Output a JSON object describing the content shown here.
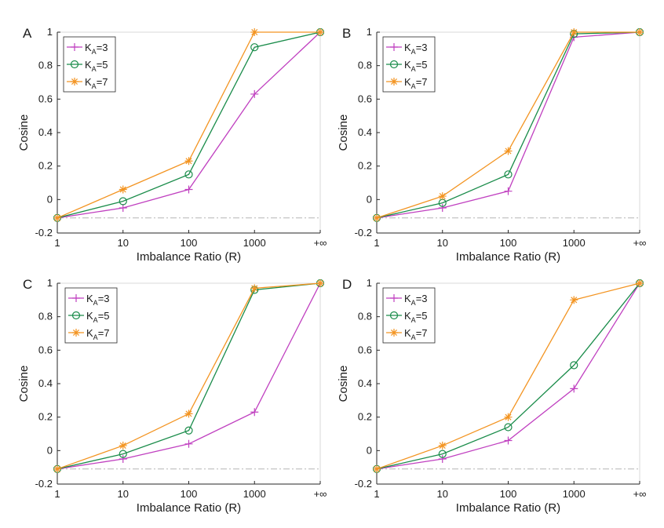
{
  "chart_data": [
    {
      "type": "line",
      "panel": "A",
      "categories": [
        "1",
        "10",
        "100",
        "1000",
        "+∞"
      ],
      "xlabel": "Imbalance Ratio (R)",
      "ylabel": "Cosine",
      "ylim": [
        -0.2,
        1
      ],
      "yticks": [
        "-0.2",
        "0",
        "0.2",
        "0.4",
        "0.6",
        "0.8",
        "1"
      ],
      "reference_line": -0.11,
      "legend_position": "top-left",
      "series": [
        {
          "name": "K_A=3",
          "label": "K",
          "sub": "A",
          "suffix": "=3",
          "color": "#c040c0",
          "marker": "plus",
          "values": [
            -0.11,
            -0.05,
            0.06,
            0.63,
            1.0
          ]
        },
        {
          "name": "K_A=5",
          "label": "K",
          "sub": "A",
          "suffix": "=5",
          "color": "#1a8c4a",
          "marker": "circle",
          "values": [
            -0.11,
            -0.01,
            0.15,
            0.91,
            1.0
          ]
        },
        {
          "name": "K_A=7",
          "label": "K",
          "sub": "A",
          "suffix": "=7",
          "color": "#f39421",
          "marker": "asterisk",
          "values": [
            -0.11,
            0.06,
            0.23,
            1.0,
            1.0
          ]
        }
      ]
    },
    {
      "type": "line",
      "panel": "B",
      "categories": [
        "1",
        "10",
        "100",
        "1000",
        "+∞"
      ],
      "xlabel": "Imbalance Ratio (R)",
      "ylabel": "Cosine",
      "ylim": [
        -0.2,
        1
      ],
      "yticks": [
        "-0.2",
        "0",
        "0.2",
        "0.4",
        "0.6",
        "0.8",
        "1"
      ],
      "reference_line": -0.11,
      "legend_position": "top-left",
      "series": [
        {
          "name": "K_A=3",
          "label": "K",
          "sub": "A",
          "suffix": "=3",
          "color": "#c040c0",
          "marker": "plus",
          "values": [
            -0.11,
            -0.05,
            0.05,
            0.97,
            1.0
          ]
        },
        {
          "name": "K_A=5",
          "label": "K",
          "sub": "A",
          "suffix": "=5",
          "color": "#1a8c4a",
          "marker": "circle",
          "values": [
            -0.11,
            -0.02,
            0.15,
            0.99,
            1.0
          ]
        },
        {
          "name": "K_A=7",
          "label": "K",
          "sub": "A",
          "suffix": "=7",
          "color": "#f39421",
          "marker": "asterisk",
          "values": [
            -0.11,
            0.02,
            0.29,
            1.0,
            1.0
          ]
        }
      ]
    },
    {
      "type": "line",
      "panel": "C",
      "categories": [
        "1",
        "10",
        "100",
        "1000",
        "+∞"
      ],
      "xlabel": "Imbalance Ratio (R)",
      "ylabel": "Cosine",
      "ylim": [
        -0.2,
        1
      ],
      "yticks": [
        "-0.2",
        "0",
        "0.2",
        "0.4",
        "0.6",
        "0.8",
        "1"
      ],
      "reference_line": -0.11,
      "legend_position": "top-right",
      "series": [
        {
          "name": "K_A=3",
          "label": "K",
          "sub": "A",
          "suffix": "=3",
          "color": "#c040c0",
          "marker": "plus",
          "values": [
            -0.11,
            -0.05,
            0.04,
            0.23,
            1.0
          ]
        },
        {
          "name": "K_A=5",
          "label": "K",
          "sub": "A",
          "suffix": "=5",
          "color": "#1a8c4a",
          "marker": "circle",
          "values": [
            -0.11,
            -0.02,
            0.12,
            0.96,
            1.0
          ]
        },
        {
          "name": "K_A=7",
          "label": "K",
          "sub": "A",
          "suffix": "=7",
          "color": "#f39421",
          "marker": "asterisk",
          "values": [
            -0.11,
            0.03,
            0.22,
            0.97,
            1.0
          ]
        }
      ]
    },
    {
      "type": "line",
      "panel": "D",
      "categories": [
        "1",
        "10",
        "100",
        "1000",
        "+∞"
      ],
      "xlabel": "Imbalance Ratio (R)",
      "ylabel": "Cosine",
      "ylim": [
        -0.2,
        1
      ],
      "yticks": [
        "-0.2",
        "0",
        "0.2",
        "0.4",
        "0.6",
        "0.8",
        "1"
      ],
      "reference_line": -0.11,
      "legend_position": "top-left",
      "series": [
        {
          "name": "K_A=3",
          "label": "K",
          "sub": "A",
          "suffix": "=3",
          "color": "#c040c0",
          "marker": "plus",
          "values": [
            -0.11,
            -0.05,
            0.06,
            0.37,
            1.0
          ]
        },
        {
          "name": "K_A=5",
          "label": "K",
          "sub": "A",
          "suffix": "=5",
          "color": "#1a8c4a",
          "marker": "circle",
          "values": [
            -0.11,
            -0.02,
            0.14,
            0.51,
            1.0
          ]
        },
        {
          "name": "K_A=7",
          "label": "K",
          "sub": "A",
          "suffix": "=7",
          "color": "#f39421",
          "marker": "asterisk",
          "values": [
            -0.11,
            0.03,
            0.2,
            0.9,
            1.0
          ]
        }
      ]
    }
  ]
}
